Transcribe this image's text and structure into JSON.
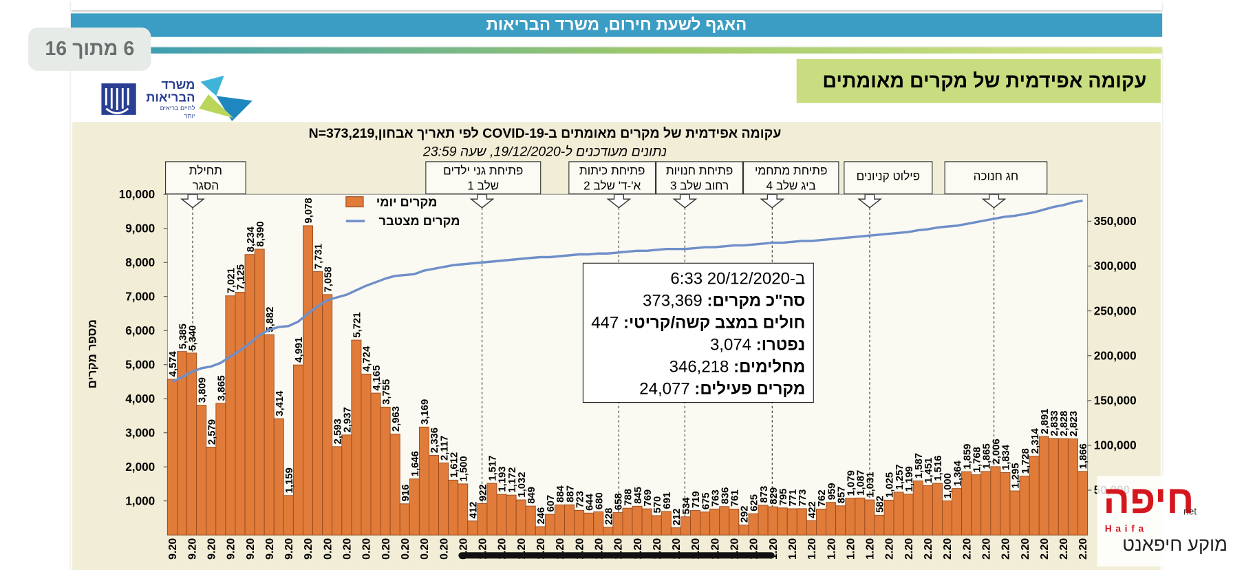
{
  "header": {
    "banner": "האגף לשעת חירום, משרד הבריאות",
    "page_counter": "6 מתוך 16",
    "slide_title": "עקומה אפידמית של מקרים מאומתים",
    "logo": {
      "line1": "משרד",
      "line2": "הבריאות",
      "tagline": "לחיים בריאים יותר"
    }
  },
  "chart_data": {
    "type": "bar",
    "title": "עקומה אפידמית של מקרים מאומתים ב-COVID-19 לפי תאריך אבחון,N=373,219",
    "subtitle": "נתונים מעודכנים ל-19/12/2020, שעה 23:59",
    "y_label": "מספר מקרים",
    "categories": [
      "9.20",
      null,
      "9.20",
      null,
      "9.20",
      null,
      "9.20",
      null,
      "9.20",
      null,
      "9.20",
      null,
      "9.20",
      null,
      "9.20",
      null,
      "0.20",
      null,
      "0.20",
      null,
      "0.20",
      null,
      "0.20",
      null,
      "0.20",
      null,
      "0.20",
      null,
      "0.20",
      null,
      "0.20",
      null,
      "1.20",
      null,
      "1.20",
      null,
      "1.20",
      null,
      "1.20",
      null,
      "1.20",
      null,
      "1.20",
      null,
      "1.20",
      null,
      "1.20",
      null,
      "1.20",
      null,
      "1.20",
      null,
      "1.20",
      null,
      "1.20",
      null,
      "1.20",
      null,
      "1.20",
      null,
      "1.20",
      null,
      "1.20",
      null,
      "1.20",
      null,
      "1.20",
      null,
      "1.20",
      null,
      "1.20",
      null,
      "1.20",
      null,
      "2.20",
      null,
      "2.20",
      null,
      "2.20",
      null,
      "2.20",
      null,
      "2.20",
      null,
      "2.20",
      null,
      "2.20",
      null,
      "2.20",
      null,
      "2.20",
      null,
      "2.20",
      null,
      "2.20"
    ],
    "ylim": [
      0,
      10000
    ],
    "yticks": [
      {
        "value": 1000,
        "label": "1,000"
      },
      {
        "value": 2000,
        "label": "2,000"
      },
      {
        "value": 3000,
        "label": "3,000"
      },
      {
        "value": 4000,
        "label": "4,000"
      },
      {
        "value": 5000,
        "label": "5,000"
      },
      {
        "value": 6000,
        "label": "6,000"
      },
      {
        "value": 7000,
        "label": "7,000"
      },
      {
        "value": 8000,
        "label": "8,000"
      },
      {
        "value": 9000,
        "label": "9,000"
      },
      {
        "value": 10000,
        "label": "10,000"
      }
    ],
    "y2lim": [
      0,
      380000
    ],
    "y2ticks": [
      {
        "value": 50000,
        "label": "50,000"
      },
      {
        "value": 100000,
        "label": "100,000"
      },
      {
        "value": 150000,
        "label": "150,000"
      },
      {
        "value": 200000,
        "label": "200,000"
      },
      {
        "value": 250000,
        "label": "250,000"
      },
      {
        "value": 300000,
        "label": "300,000"
      },
      {
        "value": 350000,
        "label": "350,000"
      }
    ],
    "series": [
      {
        "name": "מקרים יומי",
        "type": "bar",
        "color": "#e07b39",
        "values": [
          4574,
          5385,
          5340,
          3809,
          2579,
          3865,
          7021,
          7125,
          8234,
          8390,
          5882,
          3414,
          1159,
          4991,
          9078,
          7731,
          7058,
          2593,
          2937,
          5721,
          4724,
          4165,
          3755,
          2963,
          916,
          1646,
          3169,
          2336,
          2117,
          1612,
          1500,
          412,
          922,
          1517,
          1193,
          1172,
          1032,
          849,
          246,
          607,
          884,
          887,
          723,
          644,
          680,
          228,
          658,
          788,
          845,
          769,
          570,
          691,
          212,
          534,
          719,
          675,
          763,
          836,
          761,
          292,
          625,
          873,
          829,
          795,
          771,
          773,
          422,
          762,
          959,
          857,
          1079,
          1087,
          1031,
          582,
          1025,
          1257,
          1199,
          1587,
          1451,
          1516,
          1000,
          1364,
          1859,
          1768,
          1865,
          2006,
          1834,
          1295,
          1728,
          2314,
          2891,
          2833,
          2828,
          2823,
          1866
        ],
        "value_labels": [
          "4,574",
          "5,385",
          "5,340",
          "3,809",
          "2,579",
          "3,865",
          "7,021",
          "7,125",
          "8,234",
          "8,390",
          "5,882",
          "3,414",
          "1,159",
          "4,991",
          "9,078",
          "7,731",
          "7,058",
          "2,593",
          "2,937",
          "5,721",
          "4,724",
          "4,165",
          "3,755",
          "2,963",
          "916",
          "1,646",
          "3,169",
          "2,336",
          "2,117",
          "1,612",
          "1,500",
          "412",
          "922",
          "1,517",
          "1,193",
          "1,172",
          "1,032",
          "849",
          "246",
          "607",
          "884",
          "887",
          "723",
          "644",
          "680",
          "228",
          "658",
          "788",
          "845",
          "769",
          "570",
          "691",
          "212",
          "534",
          "719",
          "675",
          "763",
          "836",
          "761",
          "292",
          "625",
          "873",
          "829",
          "795",
          "771",
          "773",
          "422",
          "762",
          "959",
          "857",
          "1,079",
          "1,087",
          "1,031",
          "582",
          "1,025",
          "1,257",
          "1,199",
          "1,587",
          "1,451",
          "1,516",
          "1,000",
          "1,364",
          "1,859",
          "1,768",
          "1,865",
          "2,006",
          "1,834",
          "1,295",
          "1,728",
          "2,314",
          "2,891",
          "2,833",
          "2,828",
          "2,823",
          "1,866"
        ]
      },
      {
        "name": "מקרים מצטבר",
        "type": "line",
        "color": "#6f8fc9",
        "axis": "y2",
        "values": [
          171000,
          176000,
          182000,
          186000,
          188000,
          192000,
          199000,
          206000,
          214000,
          223000,
          229000,
          232000,
          233000,
          238000,
          247000,
          255000,
          262000,
          265000,
          268000,
          273000,
          278000,
          282000,
          286000,
          289000,
          290000,
          291000,
          295000,
          297000,
          299000,
          301000,
          302000,
          303000,
          304000,
          305000,
          306000,
          307000,
          308000,
          309000,
          310000,
          310000,
          311000,
          312000,
          313000,
          313000,
          314000,
          314000,
          315000,
          316000,
          317000,
          317000,
          318000,
          319000,
          319000,
          319000,
          320000,
          321000,
          321000,
          322000,
          323000,
          323000,
          324000,
          325000,
          326000,
          326000,
          327000,
          328000,
          328000,
          329000,
          330000,
          331000,
          332000,
          333000,
          334000,
          335000,
          336000,
          337000,
          338000,
          340000,
          341000,
          343000,
          344000,
          345000,
          347000,
          349000,
          351000,
          353000,
          355000,
          356000,
          358000,
          360000,
          363000,
          366000,
          368000,
          371000,
          373000
        ]
      }
    ],
    "annotations": [
      {
        "lines": [
          "תחילת",
          "הסגר"
        ]
      },
      {
        "lines": [
          "פתיחת גני ילדים",
          "שלב 1"
        ]
      },
      {
        "lines": [
          "פתיחת כיתות",
          "א'-ד' שלב 2"
        ]
      },
      {
        "lines": [
          "פתיחת חנויות",
          "רחוב שלב 3"
        ]
      },
      {
        "lines": [
          "פתיחת מתחמי",
          "ביג שלב 4"
        ]
      },
      {
        "lines": [
          "פילוט קניונים"
        ]
      },
      {
        "lines": [
          "חג חנוכה"
        ]
      }
    ],
    "info_box": {
      "timestamp": "ב-20/12/2020 6:33",
      "items": [
        {
          "label": "סה\"כ מקרים:",
          "value": "373,369"
        },
        {
          "label": "חולים במצב קשה/קריטי:",
          "value": "447"
        },
        {
          "label": "נפטרו:",
          "value": "3,074"
        },
        {
          "label": "מחלימים:",
          "value": "346,218"
        },
        {
          "label": "מקרים פעילים:",
          "value": "24,077"
        }
      ]
    }
  },
  "watermark": {
    "main": "חיפה",
    "suffix": "net",
    "latin": "Haifa",
    "tagline": "מוקע חיפאנט"
  }
}
